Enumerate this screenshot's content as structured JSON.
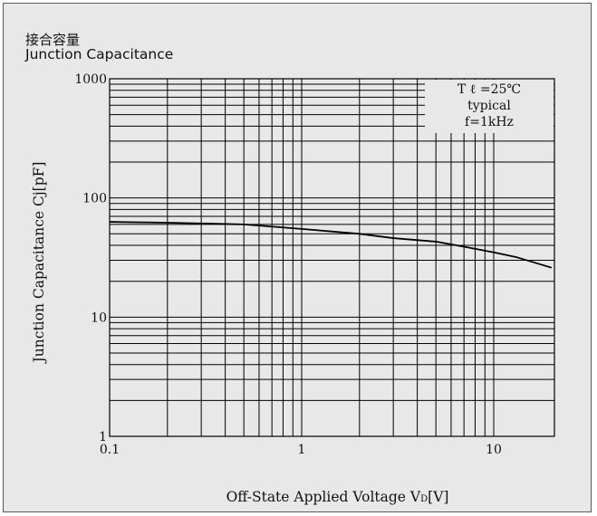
{
  "chart_data": {
    "type": "line",
    "title_jp": "接合容量",
    "title": "Junction Capacitance",
    "xlabel_main": "Off-State Applied Voltage V",
    "xlabel_sub": "D",
    "xlabel_unit": "[V]",
    "ylabel": "Junction Capacitance Cj[pF]",
    "xscale": "log",
    "yscale": "log",
    "xlim": [
      0.1,
      20
    ],
    "ylim": [
      1,
      1000
    ],
    "x_ticks": [
      {
        "value": 0.1,
        "label": "0.1"
      },
      {
        "value": 1,
        "label": "1"
      },
      {
        "value": 10,
        "label": "10"
      }
    ],
    "y_ticks": [
      {
        "value": 1,
        "label": "1"
      },
      {
        "value": 10,
        "label": "10"
      },
      {
        "value": 100,
        "label": "100"
      },
      {
        "value": 1000,
        "label": "1000"
      }
    ],
    "annotation": [
      "T ℓ =25℃",
      "typical",
      "f=1kHz"
    ],
    "grid": true,
    "series": [
      {
        "x": [
          0.1,
          0.2,
          0.5,
          1,
          2,
          3,
          5,
          7,
          10,
          13,
          20
        ],
        "y": [
          63,
          62,
          60,
          55,
          50,
          46,
          43,
          39,
          35,
          32,
          26
        ]
      }
    ]
  }
}
